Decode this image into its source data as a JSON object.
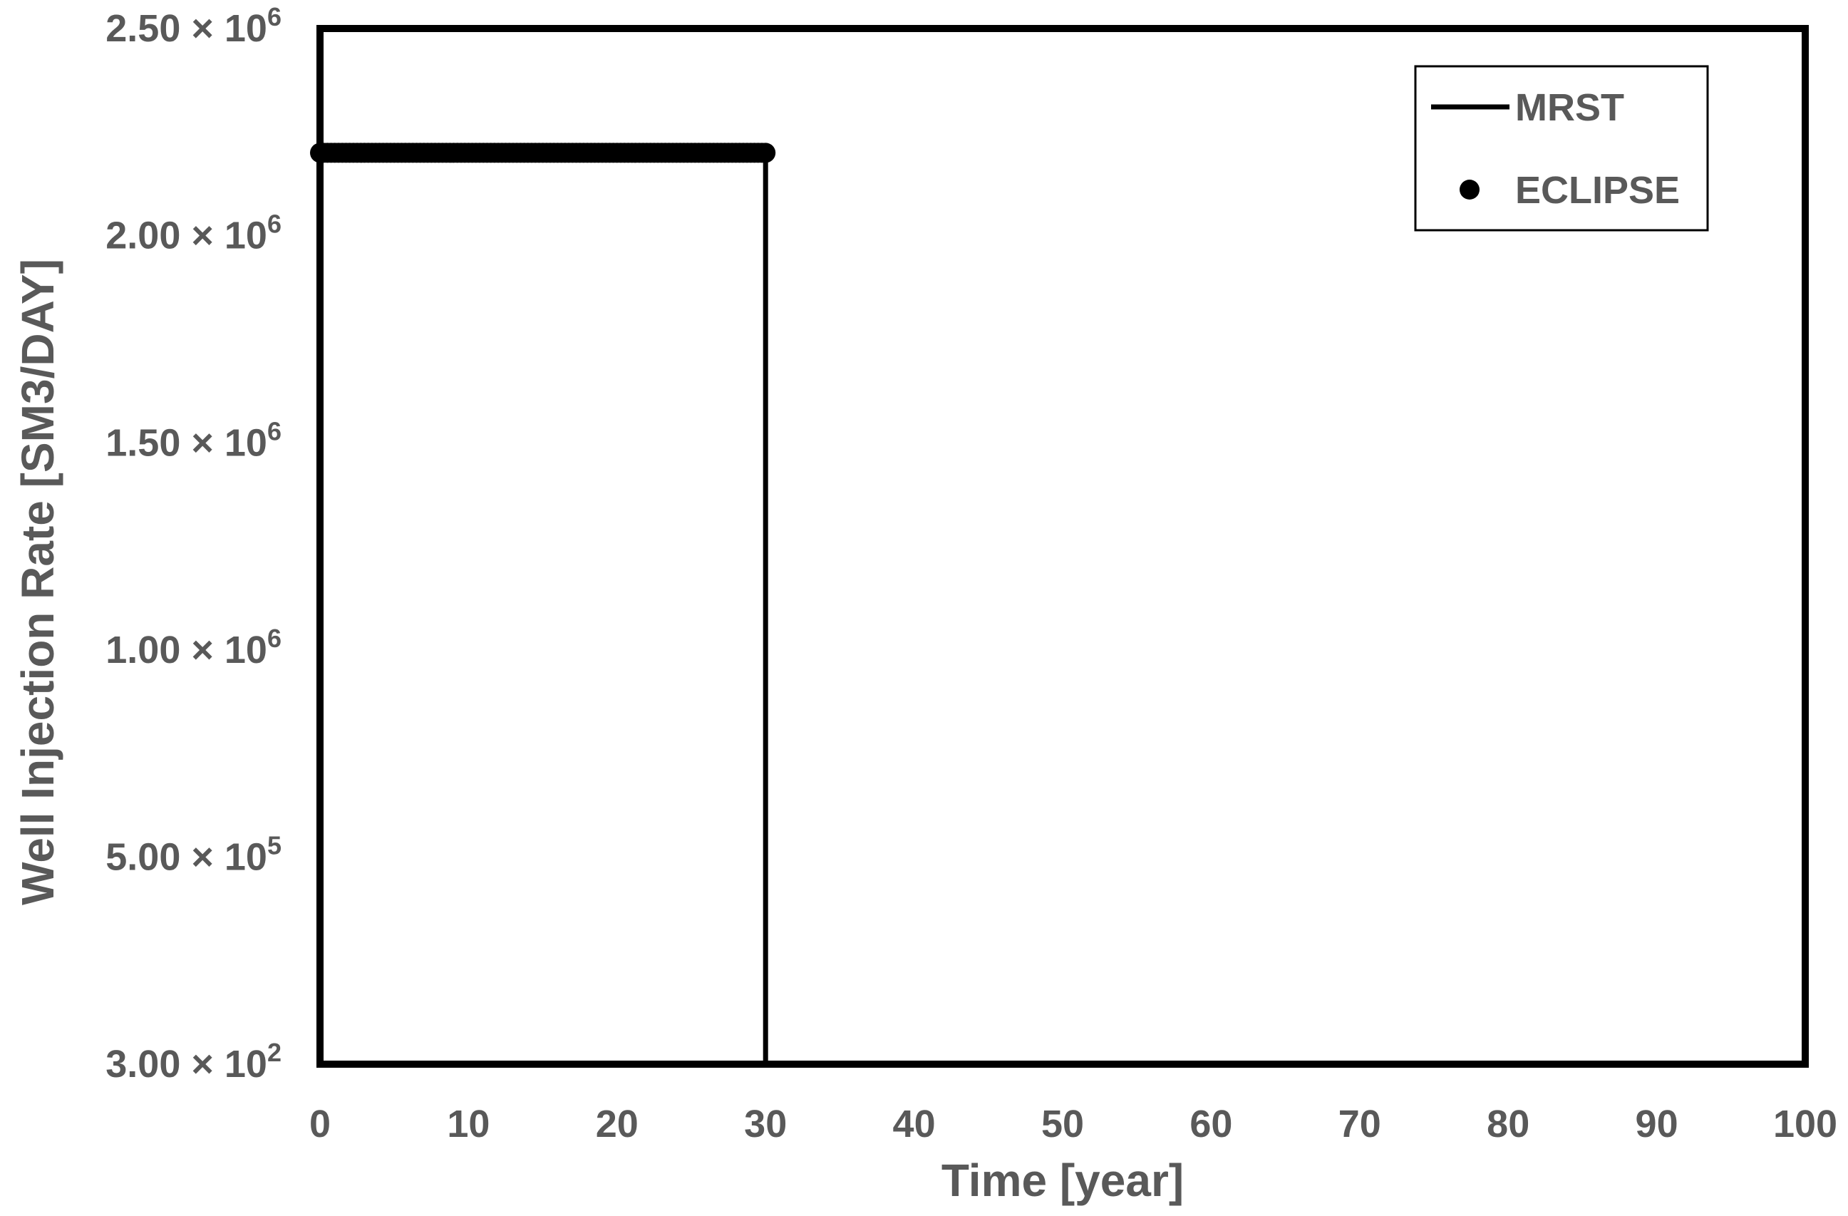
{
  "chart_data": {
    "type": "line",
    "title": "",
    "xlabel": "Time [year]",
    "ylabel": "Well Injection Rate [SM3/DAY]",
    "xlim": [
      0,
      100
    ],
    "ylim": [
      300,
      2500000
    ],
    "x_ticks": [
      0,
      10,
      20,
      30,
      40,
      50,
      60,
      70,
      80,
      90,
      100
    ],
    "y_ticks": [
      {
        "value": 300,
        "mantissa": "3.00",
        "exponent": "2"
      },
      {
        "value": 500000,
        "mantissa": "5.00",
        "exponent": "5"
      },
      {
        "value": 1000000,
        "mantissa": "1.00",
        "exponent": "6"
      },
      {
        "value": 1500000,
        "mantissa": "1.50",
        "exponent": "6"
      },
      {
        "value": 2000000,
        "mantissa": "2.00",
        "exponent": "6"
      },
      {
        "value": 2500000,
        "mantissa": "2.50",
        "exponent": "6"
      }
    ],
    "grid": false,
    "legend_position": "top-right",
    "series": [
      {
        "name": "MRST",
        "style": "line",
        "color": "#000000",
        "x": [
          0,
          0,
          30,
          30,
          100
        ],
        "y": [
          300,
          2200000,
          2200000,
          300,
          300
        ]
      },
      {
        "name": "ECLIPSE",
        "style": "markers",
        "color": "#000000",
        "x_range": [
          0,
          30
        ],
        "x_step": 0.25,
        "y_constant": 2200000
      }
    ]
  }
}
